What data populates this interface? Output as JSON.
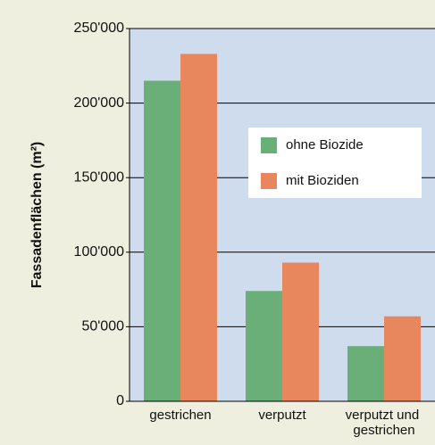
{
  "chart_data": {
    "type": "bar",
    "y_label": "Fassadenflächen (m²)",
    "categories": [
      "gestrichen",
      "verputzt",
      "verputzt und gestrichen"
    ],
    "series": [
      {
        "name": "ohne Biozide",
        "color": "#6aaf78",
        "values": [
          215000,
          74000,
          37000
        ]
      },
      {
        "name": "mit Bioziden",
        "color": "#e8875e",
        "values": [
          233000,
          93000,
          57000
        ]
      }
    ],
    "ylim": [
      0,
      250000
    ],
    "yticks": [
      0,
      {
        "value": 50000,
        "label": "50'000"
      },
      {
        "value": 100000,
        "label": "100'000"
      },
      {
        "value": 150000,
        "label": "150'000"
      },
      {
        "value": 200000,
        "label": "200'000"
      },
      {
        "value": 250000,
        "label": "250'000"
      }
    ],
    "grid": true
  }
}
